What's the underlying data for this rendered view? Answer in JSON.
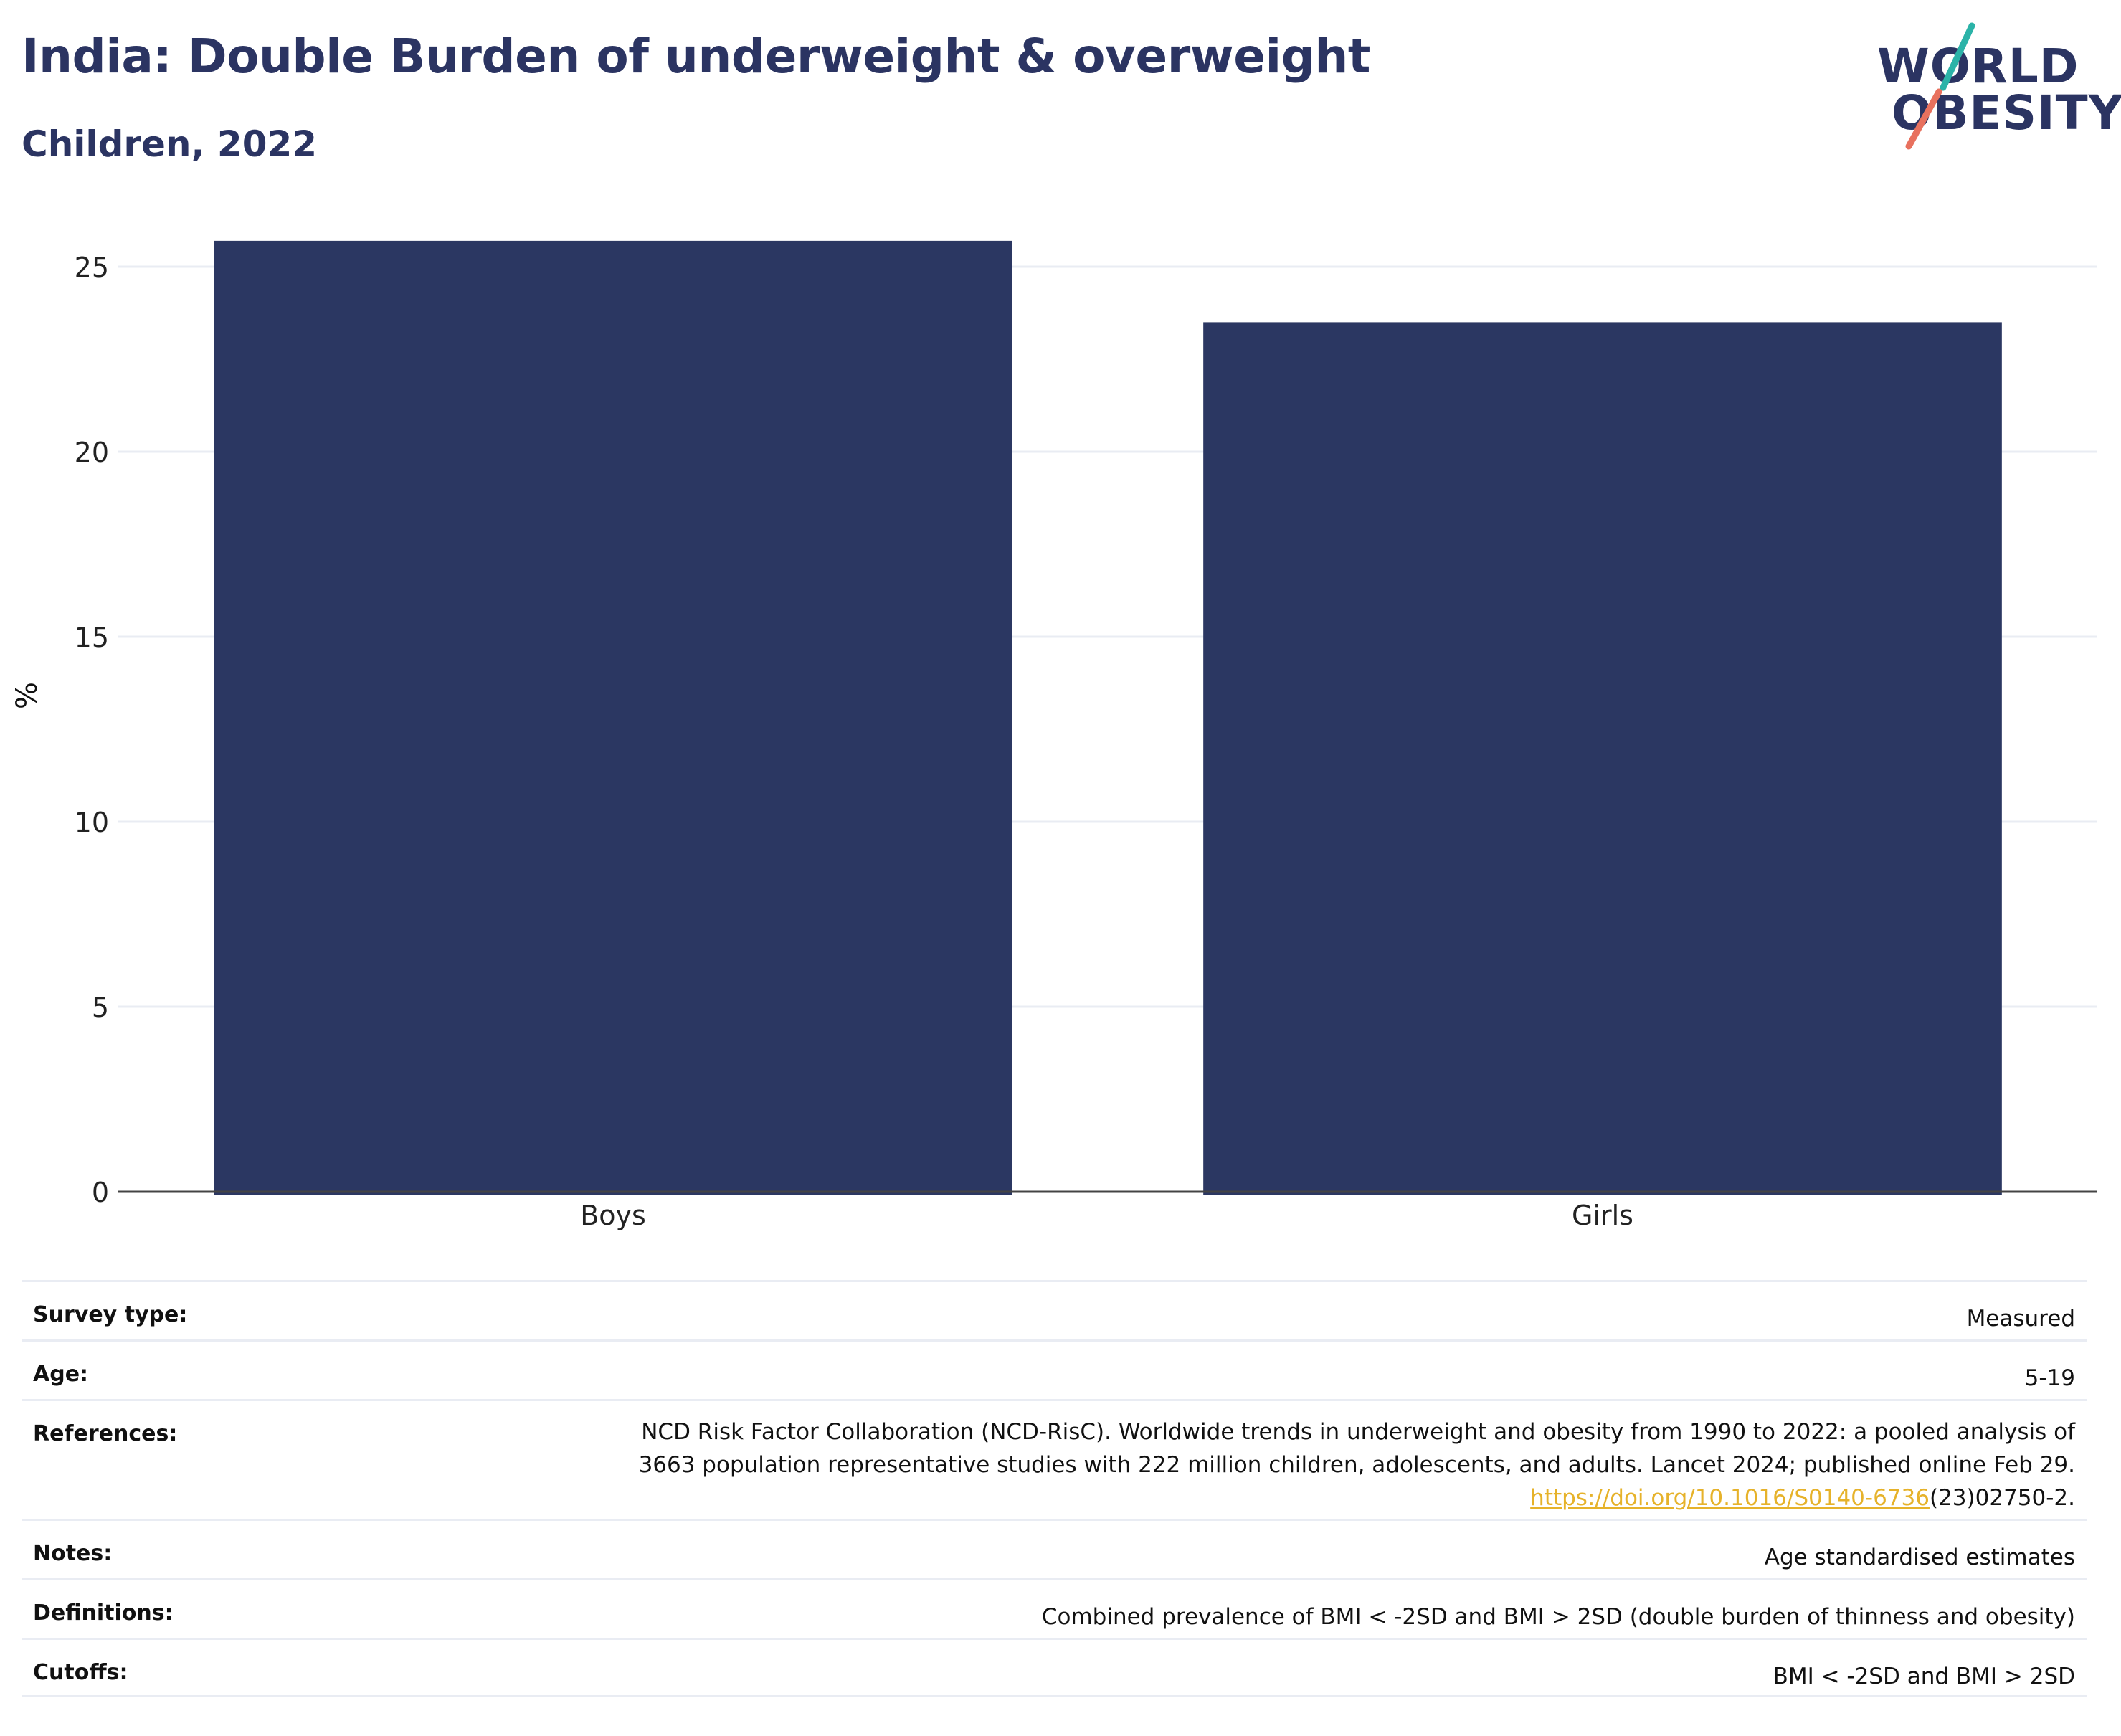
{
  "header": {
    "title": "India: Double Burden of underweight & overweight",
    "subtitle": "Children, 2022"
  },
  "logo": {
    "line1": "WORLD",
    "line2": "OBESITY"
  },
  "colors": {
    "bar": "#2b3762",
    "title": "#2b3462",
    "grid": "#e9ecf3",
    "link": "#e6b22a",
    "logo_teal": "#2bb3a8",
    "logo_coral": "#e8715e"
  },
  "chart_data": {
    "type": "bar",
    "categories": [
      "Boys",
      "Girls"
    ],
    "values": [
      25.7,
      23.5
    ],
    "ylabel": "%",
    "xlabel": "",
    "ylim": [
      0,
      26.5
    ],
    "yticks": [
      0,
      5,
      10,
      15,
      20,
      25
    ],
    "grid": true,
    "legend": "none"
  },
  "meta": {
    "survey_type": {
      "label": "Survey type:",
      "value": "Measured"
    },
    "age": {
      "label": "Age:",
      "value": "5-19"
    },
    "references": {
      "label": "References:",
      "line1": "NCD Risk Factor Collaboration (NCD-RisC). Worldwide trends in underweight and obesity from 1990 to 2022: a pooled analysis of",
      "line2": "3663 population representative studies with 222 million children, adolescents, and adults. Lancet 2024; published online Feb 29.",
      "link_text": "https://doi.org/10.1016/S0140-6736",
      "line3_suffix": "(23)02750-2."
    },
    "notes": {
      "label": "Notes:",
      "value": "Age standardised estimates"
    },
    "definitions": {
      "label": "Definitions:",
      "value": "Combined prevalence of BMI < -2SD and BMI > 2SD (double burden of thinness and obesity)"
    },
    "cutoffs": {
      "label": "Cutoffs:",
      "value": "BMI < -2SD and BMI > 2SD"
    }
  }
}
